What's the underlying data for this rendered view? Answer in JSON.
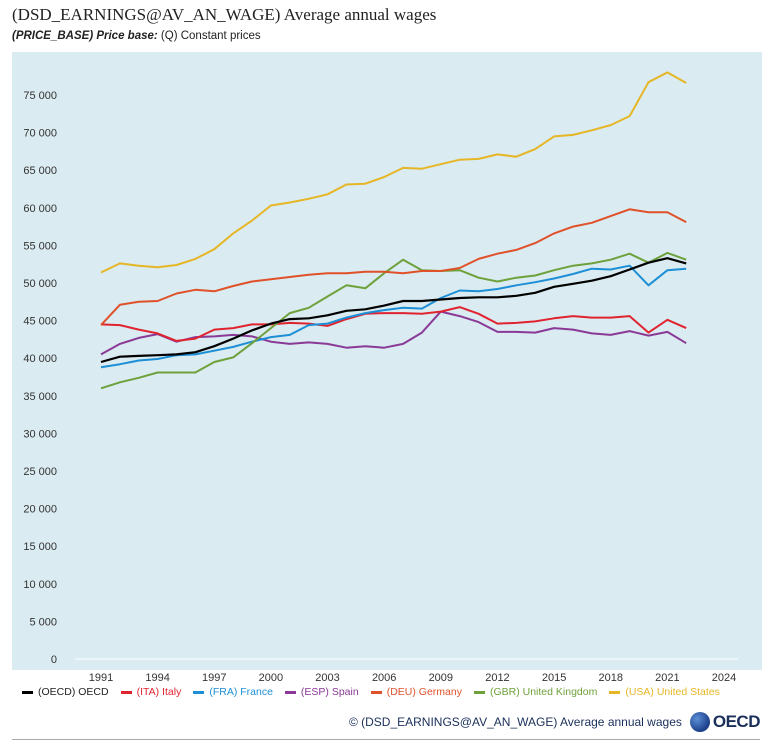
{
  "header": {
    "title": "(DSD_EARNINGS@AV_AN_WAGE) Average annual wages",
    "subtitle_key": "(PRICE_BASE) Price base:",
    "subtitle_value": "(Q) Constant prices"
  },
  "footer": {
    "source": "©  (DSD_EARNINGS@AV_AN_WAGE) Average annual wages",
    "logo_text": "OECD"
  },
  "colors": {
    "plot_background": "#daebf1",
    "OECD": "#000000",
    "ITA": "#e0242f",
    "FRA": "#1d8fd6",
    "ESP": "#8a3a96",
    "DEU": "#e0512a",
    "GBR": "#6ea13b",
    "USA": "#e6b626"
  },
  "chart_data": {
    "type": "line",
    "x_ticks": [
      "1991",
      "1994",
      "1997",
      "2000",
      "2003",
      "2006",
      "2009",
      "2012",
      "2015",
      "2018",
      "2021",
      "2024"
    ],
    "y_ticks": [
      "0",
      "5 000",
      "10 000",
      "15 000",
      "20 000",
      "25 000",
      "30 000",
      "35 000",
      "40 000",
      "45 000",
      "50 000",
      "55 000",
      "60 000",
      "65 000",
      "70 000",
      "75 000"
    ],
    "xlim": [
      1990,
      2025
    ],
    "ylim": [
      -1000,
      79000
    ],
    "grid": false,
    "legend_placement": "bottom",
    "x": [
      1991,
      1992,
      1993,
      1994,
      1995,
      1996,
      1997,
      1998,
      1999,
      2000,
      2001,
      2002,
      2003,
      2004,
      2005,
      2006,
      2007,
      2008,
      2009,
      2010,
      2011,
      2012,
      2013,
      2014,
      2015,
      2016,
      2017,
      2018,
      2019,
      2020,
      2021,
      2022
    ],
    "series": [
      {
        "key": "OECD",
        "name": "(OECD) OECD",
        "values": [
          39500,
          40200,
          40300,
          40400,
          40500,
          40800,
          41600,
          42600,
          43700,
          44600,
          45200,
          45300,
          45700,
          46300,
          46500,
          47000,
          47600,
          47600,
          47800,
          48000,
          48100,
          48100,
          48300,
          48700,
          49500,
          49900,
          50300,
          50900,
          51800,
          52700,
          53300,
          52600
        ]
      },
      {
        "key": "ITA",
        "name": "(ITA) Italy",
        "values": [
          44500,
          44400,
          43800,
          43300,
          42300,
          42600,
          43800,
          44000,
          44500,
          44500,
          44700,
          44600,
          44300,
          45200,
          45900,
          46000,
          46000,
          45900,
          46200,
          46800,
          45900,
          44600,
          44700,
          44900,
          45300,
          45600,
          45400,
          45400,
          45600,
          43400,
          45100,
          44000
        ]
      },
      {
        "key": "FRA",
        "name": "(FRA) France",
        "values": [
          38800,
          39200,
          39700,
          39900,
          40400,
          40500,
          41000,
          41500,
          42200,
          42800,
          43100,
          44400,
          44600,
          45400,
          46000,
          46400,
          46700,
          46600,
          48000,
          49000,
          48900,
          49200,
          49700,
          50100,
          50600,
          51200,
          51900,
          51800,
          52300,
          49700,
          51700,
          51900
        ]
      },
      {
        "key": "ESP",
        "name": "(ESP) Spain",
        "values": [
          40500,
          41900,
          42700,
          43200,
          42200,
          42800,
          42900,
          43100,
          42900,
          42200,
          41900,
          42100,
          41900,
          41400,
          41600,
          41400,
          41900,
          43400,
          46200,
          45600,
          44800,
          43500,
          43500,
          43400,
          44000,
          43800,
          43300,
          43100,
          43600,
          43000,
          43500,
          42000
        ]
      },
      {
        "key": "DEU",
        "name": "(DEU) Germany",
        "values": [
          44400,
          47100,
          47500,
          47600,
          48600,
          49100,
          48900,
          49600,
          50200,
          50500,
          50800,
          51100,
          51300,
          51300,
          51500,
          51500,
          51300,
          51600,
          51600,
          52000,
          53200,
          53900,
          54400,
          55300,
          56600,
          57500,
          58000,
          58900,
          59800,
          59400,
          59400,
          58100
        ]
      },
      {
        "key": "GBR",
        "name": "(GBR) United Kingdom",
        "values": [
          36000,
          36800,
          37400,
          38100,
          38100,
          38100,
          39500,
          40100,
          42000,
          44000,
          46000,
          46700,
          48200,
          49700,
          49300,
          51300,
          53100,
          51700,
          51600,
          51700,
          50700,
          50200,
          50700,
          51000,
          51700,
          52300,
          52600,
          53100,
          53900,
          52700,
          54000,
          53100
        ]
      },
      {
        "key": "USA",
        "name": "(USA) United States",
        "values": [
          51400,
          52600,
          52300,
          52100,
          52400,
          53200,
          54500,
          56600,
          58300,
          60300,
          60700,
          61200,
          61800,
          63100,
          63200,
          64100,
          65300,
          65200,
          65800,
          66400,
          66500,
          67100,
          66800,
          67800,
          69500,
          69700,
          70300,
          71000,
          72200,
          76700,
          78000,
          76600
        ]
      }
    ]
  }
}
